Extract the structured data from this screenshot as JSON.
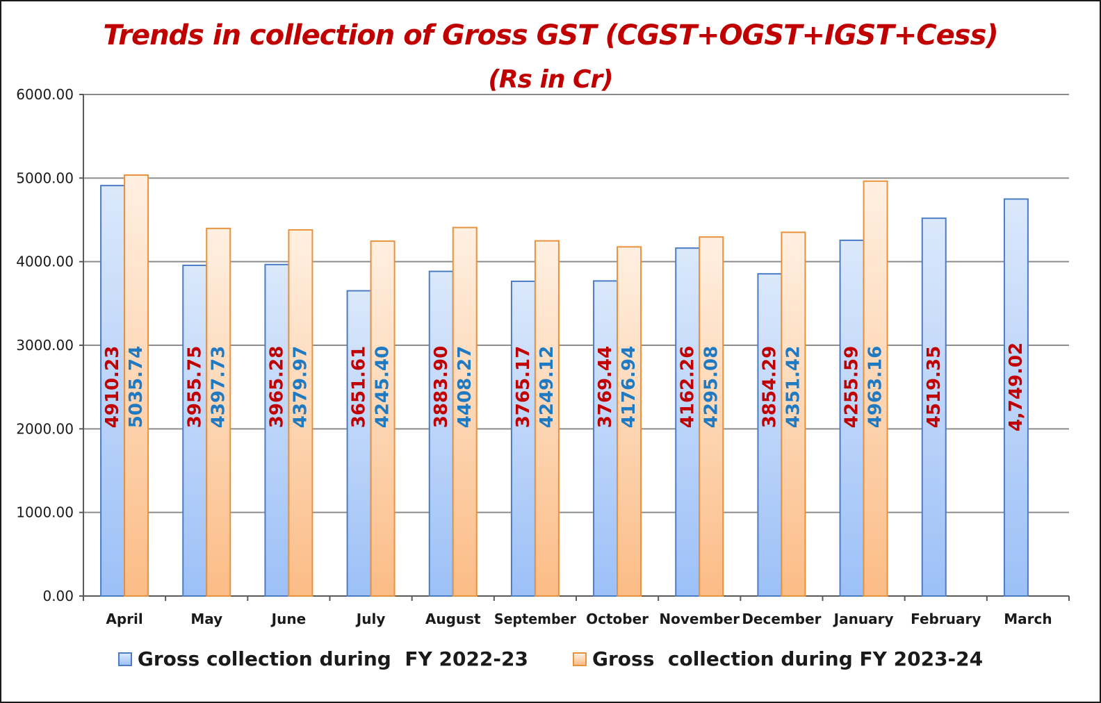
{
  "chart_data": {
    "type": "bar",
    "title": "Trends in collection of Gross GST (CGST+OGST+IGST+Cess)",
    "subtitle": "(Rs in Cr)",
    "categories": [
      "April",
      "May",
      "June",
      "July",
      "August",
      "September",
      "October",
      "November",
      "December",
      "January",
      "February",
      "March"
    ],
    "series": [
      {
        "name": "Gross collection during  FY 2022-23",
        "values": [
          4910.23,
          3955.75,
          3965.28,
          3651.61,
          3883.9,
          3765.17,
          3769.44,
          4162.26,
          3854.29,
          4255.59,
          4519.35,
          4749.02
        ],
        "labels": [
          "4910.23",
          "3955.75",
          "3965.28",
          "3651.61",
          "3883.90",
          "3765.17",
          "3769.44",
          "4162.26",
          "3854.29",
          "4255.59",
          "4519.35",
          "4,749.02"
        ],
        "fill_top": "#dbe8fb",
        "fill_bottom": "#9cc0f7",
        "stroke": "#4a7dc4",
        "label_color": "#c00000"
      },
      {
        "name": "Gross  collection during FY 2023-24",
        "values": [
          5035.74,
          4397.73,
          4379.97,
          4245.4,
          4408.27,
          4249.12,
          4176.94,
          4295.08,
          4351.42,
          4963.16,
          null,
          null
        ],
        "labels": [
          "5035.74",
          "4397.73",
          "4379.97",
          "4245.40",
          "4408.27",
          "4249.12",
          "4176.94",
          "4295.08",
          "4351.42",
          "4963.16",
          null,
          null
        ],
        "fill_top": "#fff0e2",
        "fill_bottom": "#fbbc86",
        "stroke": "#e8923e",
        "label_color": "#1f7ac2"
      }
    ],
    "yticks": [
      "0.00",
      "1000.00",
      "2000.00",
      "3000.00",
      "4000.00",
      "5000.00",
      "6000.00"
    ],
    "ylim": [
      0,
      6000
    ],
    "grid": true,
    "legend_position": "bottom"
  }
}
